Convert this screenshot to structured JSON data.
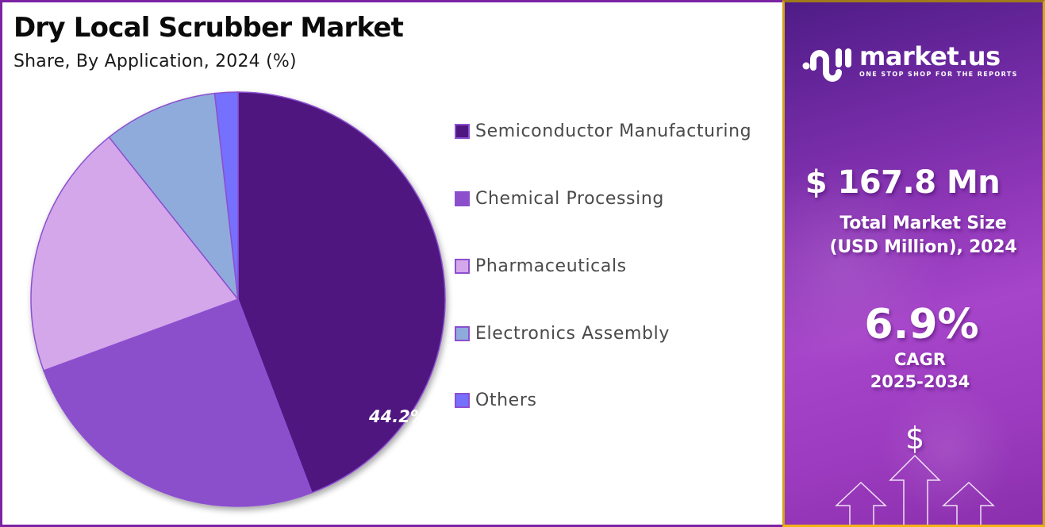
{
  "header": {
    "title": "Dry Local Scrubber Market",
    "subtitle": "Share, By Application, 2024 (%)"
  },
  "chart_data": {
    "type": "pie",
    "title": "Dry Local Scrubber Market",
    "subtitle": "Share, By Application, 2024 (%)",
    "categories": [
      "Semiconductor Manufacturing",
      "Chemical Processing",
      "Pharmaceuticals",
      "Electronics Assembly",
      "Others"
    ],
    "values": [
      44.2,
      25.2,
      19.9,
      8.9,
      1.8
    ],
    "colors": [
      "#4f1780",
      "#8b4fcc",
      "#d4a7ea",
      "#8fabdb",
      "#7570fd"
    ],
    "data_labels": [
      {
        "category": "Semiconductor Manufacturing",
        "text": "44.2%"
      }
    ],
    "start_angle_deg": 0,
    "direction": "clockwise",
    "legend_position": "right"
  },
  "pie": {
    "highlight_label": "44.2%",
    "slice_stroke": "#8c4fd0"
  },
  "legend": {
    "items": [
      {
        "label": "Semiconductor Manufacturing",
        "color": "#4f1780"
      },
      {
        "label": "Chemical Processing",
        "color": "#8b4fcc"
      },
      {
        "label": "Pharmaceuticals",
        "color": "#d4a7ea"
      },
      {
        "label": "Electronics Assembly",
        "color": "#8fabdb"
      },
      {
        "label": "Others",
        "color": "#7570fd"
      }
    ]
  },
  "sidebar": {
    "brand": {
      "name": "market.us",
      "tagline": "ONE STOP SHOP FOR THE REPORTS"
    },
    "market_size": {
      "value": "$ 167.8 Mn",
      "label_line1": "Total Market Size",
      "label_line2": "(USD Million), 2024"
    },
    "cagr": {
      "value": "6.9%",
      "label_line1": "CAGR",
      "label_line2": "2025-2034"
    },
    "icons": {
      "currency": "$",
      "growth": "arrow-up-outline-icon"
    },
    "accent_colors": {
      "panel_border": "#d3a21a",
      "left_border": "#7a23a3"
    }
  }
}
